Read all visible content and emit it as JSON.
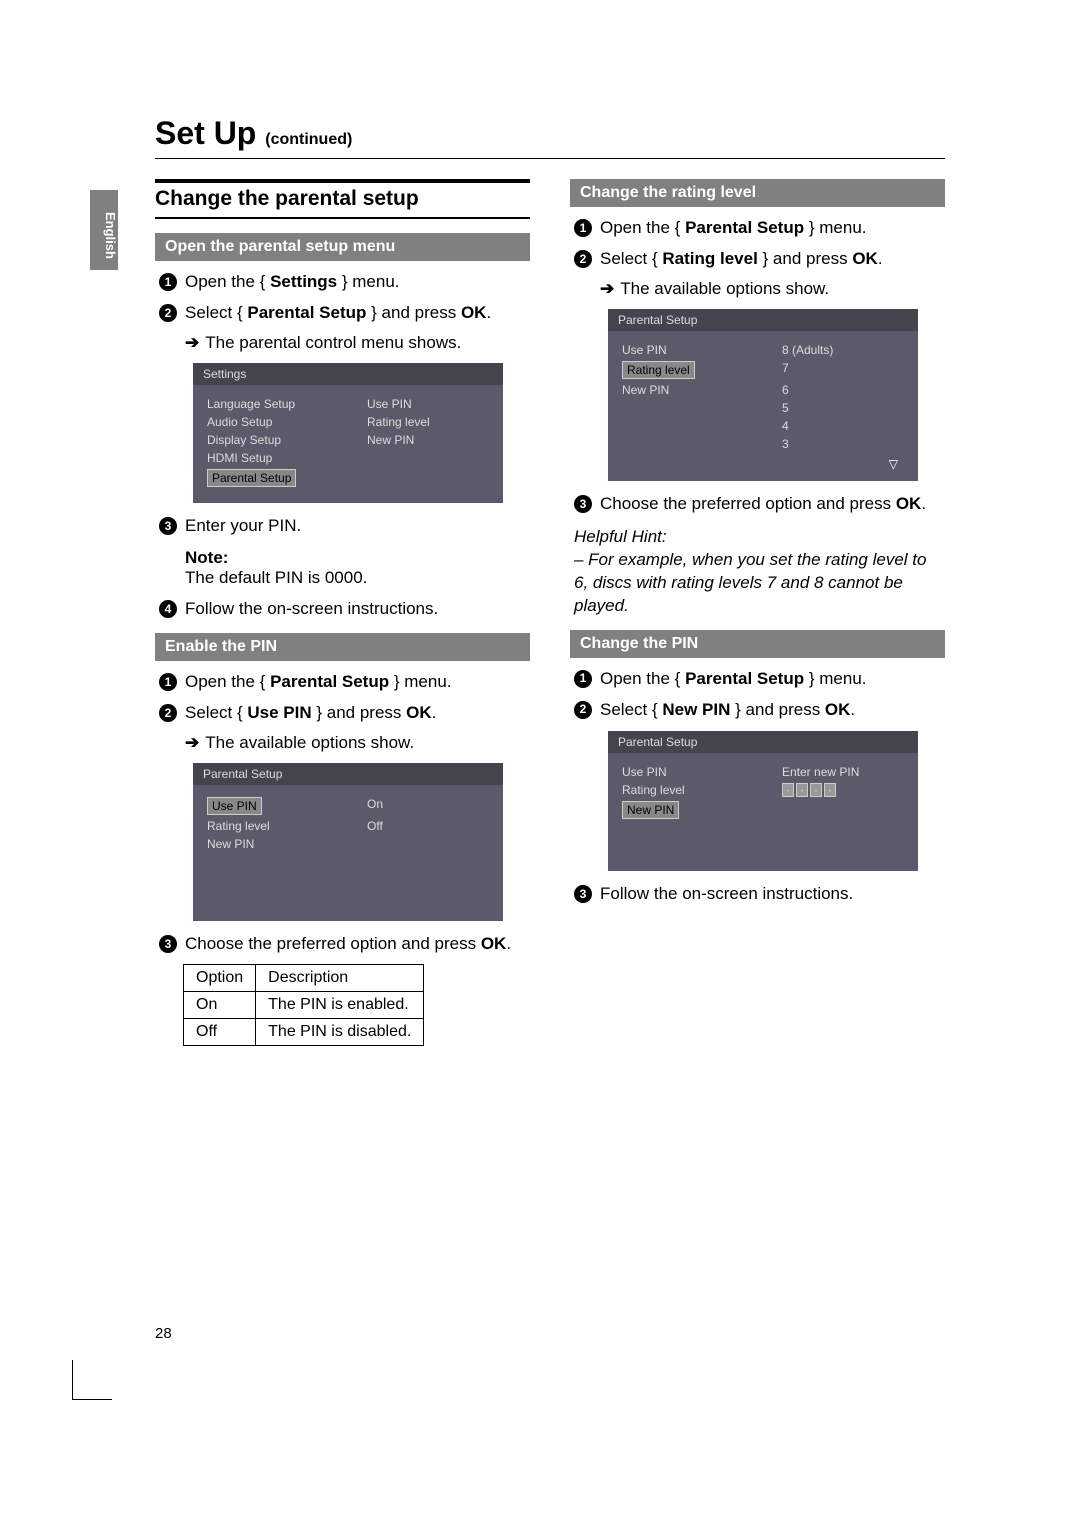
{
  "lang_tab": "English",
  "page_title": "Set Up",
  "page_title_sub": "(continued)",
  "page_number": "28",
  "left": {
    "h2": "Change the parental setup",
    "sec1": {
      "header": "Open the parental setup menu",
      "step1_a": "Open the { ",
      "step1_b": "Settings",
      "step1_c": " } menu.",
      "step2_a": "Select { ",
      "step2_b": "Parental Setup",
      "step2_c": " } and press ",
      "step2_d": "OK",
      "step2_e": ".",
      "arrow1": "The parental control menu shows.",
      "osd": {
        "title": "Settings",
        "lcol": [
          "Language Setup",
          "Audio Setup",
          "Display Setup",
          "HDMI Setup",
          "Parental Setup"
        ],
        "rcol": [
          "Use PIN",
          "Rating level",
          "New PIN"
        ]
      },
      "step3": "Enter your PIN.",
      "note_label": "Note:",
      "note_text": "The default PIN is 0000.",
      "step4": "Follow the on-screen instructions."
    },
    "sec2": {
      "header": "Enable the PIN",
      "step1_a": "Open the { ",
      "step1_b": "Parental Setup",
      "step1_c": " } menu.",
      "step2_a": "Select { ",
      "step2_b": "Use PIN",
      "step2_c": " } and press ",
      "step2_d": "OK",
      "step2_e": ".",
      "arrow1": "The available options show.",
      "osd": {
        "title": "Parental Setup",
        "lcol": [
          "Use PIN",
          "Rating level",
          "New PIN"
        ],
        "rcol": [
          "On",
          "Off"
        ]
      },
      "step3_a": "Choose the preferred option and press ",
      "step3_b": "OK",
      "step3_c": ".",
      "table": {
        "headers": [
          "Option",
          "Description"
        ],
        "rows": [
          [
            "On",
            "The PIN is enabled."
          ],
          [
            "Off",
            "The PIN is disabled."
          ]
        ]
      }
    }
  },
  "right": {
    "sec1": {
      "header": "Change the rating level",
      "step1_a": "Open the { ",
      "step1_b": "Parental Setup",
      "step1_c": " } menu.",
      "step2_a": "Select { ",
      "step2_b": "Rating level",
      "step2_c": " } and press ",
      "step2_d": "OK",
      "step2_e": ".",
      "arrow1": "The available options show.",
      "osd": {
        "title": "Parental Setup",
        "lcol": [
          "Use PIN",
          "Rating level",
          "New PIN"
        ],
        "rcol": [
          "8 (Adults)",
          "7",
          "6",
          "5",
          "4",
          "3"
        ]
      },
      "step3_a": "Choose the preferred option and press ",
      "step3_b": "OK",
      "step3_c": ".",
      "hint_label": "Helpful Hint:",
      "hint_text": "– For example, when you set the rating level to 6, discs with rating levels 7 and 8 cannot be played."
    },
    "sec2": {
      "header": "Change the PIN",
      "step1_a": "Open the { ",
      "step1_b": "Parental Setup",
      "step1_c": " } menu.",
      "step2_a": "Select { ",
      "step2_b": "New PIN",
      "step2_c": " } and press ",
      "step2_d": "OK",
      "step2_e": ".",
      "osd": {
        "title": "Parental Setup",
        "lcol": [
          "Use PIN",
          "Rating level",
          "New PIN"
        ],
        "r_label": "Enter new PIN"
      },
      "step3": "Follow the on-screen instructions."
    }
  }
}
